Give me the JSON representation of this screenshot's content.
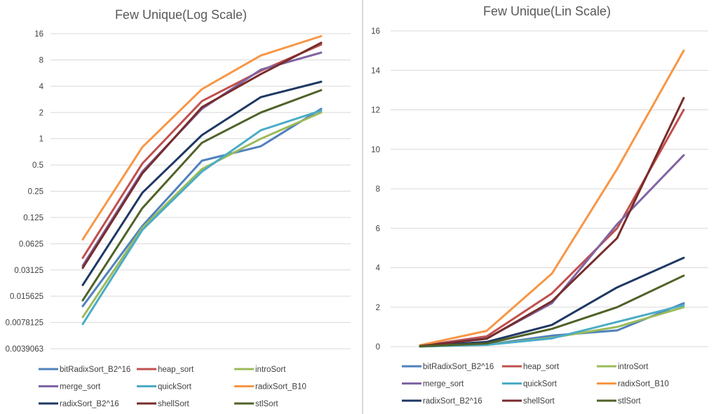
{
  "panel_divider_color": "#d9d9d9",
  "chart_data": [
    {
      "type": "line",
      "title": "Few Unique(Log Scale)",
      "yscale": "log2",
      "y_ticks": [
        {
          "value": 0.0039063,
          "label": "0.0039063"
        },
        {
          "value": 0.0078125,
          "label": "0.0078125"
        },
        {
          "value": 0.015625,
          "label": "0.015625"
        },
        {
          "value": 0.03125,
          "label": "0.03125"
        },
        {
          "value": 0.0625,
          "label": "0.0625"
        },
        {
          "value": 0.125,
          "label": "0.125"
        },
        {
          "value": 0.25,
          "label": "0.25"
        },
        {
          "value": 0.5,
          "label": "0.5"
        },
        {
          "value": 1,
          "label": "1"
        },
        {
          "value": 2,
          "label": "2"
        },
        {
          "value": 4,
          "label": "4"
        },
        {
          "value": 8,
          "label": "8"
        },
        {
          "value": 16,
          "label": "16"
        }
      ],
      "ylim": [
        0.0039063,
        16
      ],
      "x_points": 5,
      "grid": true,
      "legend_position": "bottom",
      "series": [
        {
          "name": "bitRadixSort_B2^16",
          "color": "#4f81bd",
          "values": [
            0.012,
            0.1,
            0.56,
            0.82,
            2.2
          ]
        },
        {
          "name": "heap_sort",
          "color": "#c0504d",
          "values": [
            0.043,
            0.52,
            2.7,
            6.0,
            12.0
          ]
        },
        {
          "name": "introSort",
          "color": "#9bbb59",
          "values": [
            0.009,
            0.095,
            0.45,
            1.0,
            2.0
          ]
        },
        {
          "name": "merge_sort",
          "color": "#8064a2",
          "values": [
            0.035,
            0.42,
            2.2,
            6.2,
            9.7
          ]
        },
        {
          "name": "quickSort",
          "color": "#4bacc6",
          "values": [
            0.0075,
            0.09,
            0.42,
            1.25,
            2.1
          ]
        },
        {
          "name": "radixSort_B10",
          "color": "#f79646",
          "values": [
            0.07,
            0.8,
            3.7,
            9.0,
            15.0
          ]
        },
        {
          "name": "radixSort_B2^16",
          "color": "#1f3864",
          "values": [
            0.021,
            0.24,
            1.1,
            3.0,
            4.5
          ]
        },
        {
          "name": "shellSort",
          "color": "#772c2a",
          "values": [
            0.033,
            0.4,
            2.3,
            5.5,
            12.6
          ]
        },
        {
          "name": "stlSort",
          "color": "#4f6228",
          "values": [
            0.014,
            0.16,
            0.9,
            2.0,
            3.6
          ]
        }
      ]
    },
    {
      "type": "line",
      "title": "Few Unique(Lin Scale)",
      "yscale": "linear",
      "y_ticks": [
        {
          "value": 0,
          "label": "0"
        },
        {
          "value": 2,
          "label": "2"
        },
        {
          "value": 4,
          "label": "4"
        },
        {
          "value": 6,
          "label": "6"
        },
        {
          "value": 8,
          "label": "8"
        },
        {
          "value": 10,
          "label": "10"
        },
        {
          "value": 12,
          "label": "12"
        },
        {
          "value": 14,
          "label": "14"
        },
        {
          "value": 16,
          "label": "16"
        }
      ],
      "ylim": [
        0,
        16
      ],
      "x_points": 5,
      "grid": true,
      "legend_position": "bottom",
      "series": [
        {
          "name": "bitRadixSort_B2^16",
          "color": "#4f81bd",
          "values": [
            0.012,
            0.1,
            0.56,
            0.82,
            2.2
          ]
        },
        {
          "name": "heap_sort",
          "color": "#c0504d",
          "values": [
            0.043,
            0.52,
            2.7,
            6.0,
            12.0
          ]
        },
        {
          "name": "introSort",
          "color": "#9bbb59",
          "values": [
            0.009,
            0.095,
            0.45,
            1.0,
            2.0
          ]
        },
        {
          "name": "merge_sort",
          "color": "#8064a2",
          "values": [
            0.035,
            0.42,
            2.2,
            6.2,
            9.7
          ]
        },
        {
          "name": "quickSort",
          "color": "#4bacc6",
          "values": [
            0.0075,
            0.09,
            0.42,
            1.25,
            2.1
          ]
        },
        {
          "name": "radixSort_B10",
          "color": "#f79646",
          "values": [
            0.07,
            0.8,
            3.7,
            9.0,
            15.0
          ]
        },
        {
          "name": "radixSort_B2^16",
          "color": "#1f3864",
          "values": [
            0.021,
            0.24,
            1.1,
            3.0,
            4.5
          ]
        },
        {
          "name": "shellSort",
          "color": "#772c2a",
          "values": [
            0.033,
            0.4,
            2.3,
            5.5,
            12.6
          ]
        },
        {
          "name": "stlSort",
          "color": "#4f6228",
          "values": [
            0.014,
            0.16,
            0.9,
            2.0,
            3.6
          ]
        }
      ]
    }
  ]
}
